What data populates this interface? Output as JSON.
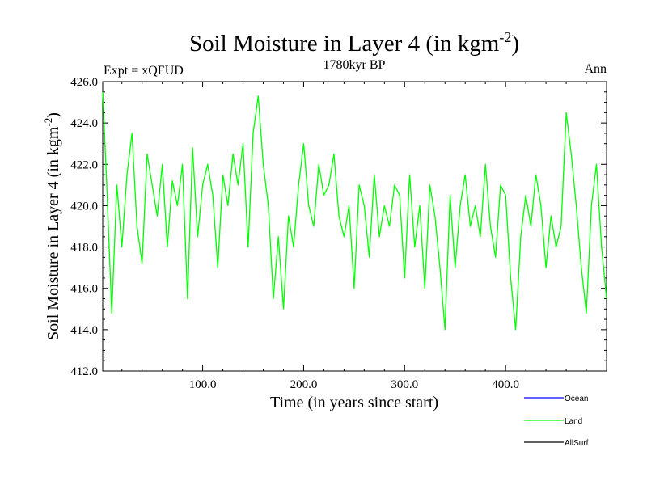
{
  "chart_data": {
    "type": "line",
    "title": "Soil Moisture in Layer 4 (in kgm",
    "title_sup": "-2",
    "title_suffix": ")",
    "subtitle": "1780kyr BP",
    "left_label": "Expt = xQFUD",
    "right_label": "Ann",
    "xlabel": "Time (in years since start)",
    "ylabel": "Soil Moisture in Layer 4 (in kgm",
    "ylabel_sup": "-2",
    "ylabel_suffix": ")",
    "xlim": [
      1,
      500
    ],
    "ylim": [
      412.0,
      426.0
    ],
    "x_ticks": [
      100,
      200,
      300,
      400
    ],
    "x_tick_labels": [
      "100.0",
      "200.0",
      "300.0",
      "400.0"
    ],
    "y_ticks": [
      412,
      414,
      416,
      418,
      420,
      422,
      424,
      426
    ],
    "y_tick_labels": [
      "412.0",
      "414.0",
      "416.0",
      "418.0",
      "420.0",
      "422.0",
      "424.0",
      "426.0"
    ],
    "series": [
      {
        "name": "Ocean",
        "color": "#0000ff",
        "values": []
      },
      {
        "name": "Land",
        "color": "#00ff00",
        "x": [
          1,
          5,
          10,
          15,
          20,
          25,
          30,
          35,
          40,
          45,
          50,
          55,
          60,
          65,
          70,
          75,
          80,
          85,
          90,
          95,
          100,
          105,
          110,
          115,
          120,
          125,
          130,
          135,
          140,
          145,
          150,
          155,
          160,
          165,
          170,
          175,
          180,
          185,
          190,
          195,
          200,
          205,
          210,
          215,
          220,
          225,
          230,
          235,
          240,
          245,
          250,
          255,
          260,
          265,
          270,
          275,
          280,
          285,
          290,
          295,
          300,
          305,
          310,
          315,
          320,
          325,
          330,
          335,
          340,
          345,
          350,
          355,
          360,
          365,
          370,
          375,
          380,
          385,
          390,
          395,
          400,
          405,
          410,
          415,
          420,
          425,
          430,
          435,
          440,
          445,
          450,
          455,
          460,
          465,
          470,
          475,
          480,
          485,
          490,
          495,
          500
        ],
        "values": [
          425.5,
          421.0,
          414.8,
          421.0,
          418.0,
          421.5,
          423.5,
          419.0,
          417.2,
          422.5,
          421.0,
          419.5,
          422.0,
          418.0,
          421.2,
          420.0,
          422.0,
          415.5,
          422.8,
          418.5,
          421.0,
          422.0,
          420.5,
          417.0,
          421.5,
          420.0,
          422.5,
          421.0,
          423.0,
          418.0,
          423.5,
          425.3,
          422.0,
          420.0,
          415.5,
          418.5,
          415.0,
          419.5,
          418.0,
          421.0,
          423.0,
          420.0,
          419.0,
          422.0,
          420.5,
          421.0,
          422.5,
          419.5,
          418.5,
          420.0,
          416.0,
          421.0,
          420.0,
          417.5,
          421.5,
          418.5,
          420.0,
          419.0,
          421.0,
          420.5,
          416.5,
          421.5,
          418.0,
          420.0,
          416.0,
          421.0,
          419.5,
          417.0,
          414.0,
          420.5,
          417.0,
          420.0,
          421.5,
          419.0,
          420.0,
          418.5,
          422.0,
          419.0,
          417.5,
          421.0,
          420.5,
          416.5,
          414.0,
          418.5,
          420.5,
          419.0,
          421.5,
          420.0,
          417.0,
          419.5,
          418.0,
          419.0,
          424.5,
          422.5,
          420.0,
          417.0,
          414.8,
          420.0,
          422.0,
          418.0,
          415.5
        ]
      },
      {
        "name": "AllSurf",
        "color": "#000000",
        "values": []
      }
    ],
    "legend_position": "bottom-right"
  }
}
